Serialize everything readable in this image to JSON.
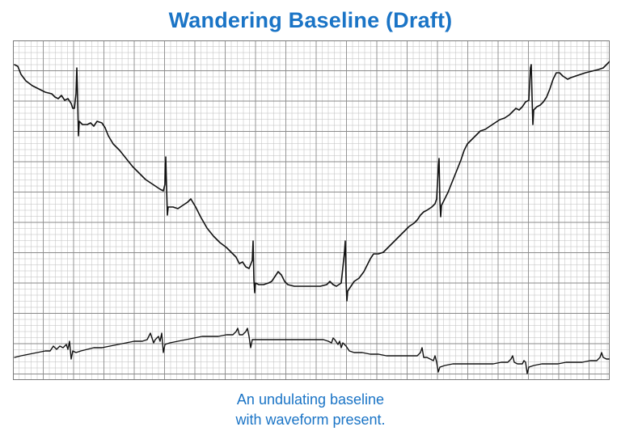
{
  "title": "Wandering Baseline (Draft)",
  "caption": {
    "line1": "An undulating baseline",
    "line2": "with waveform present."
  },
  "colors": {
    "title": "#1a74c6",
    "caption": "#1a74c6",
    "grid_major": "#8a8a8a",
    "grid_minor": "#bdbdbd",
    "trace": "#111111"
  }
}
